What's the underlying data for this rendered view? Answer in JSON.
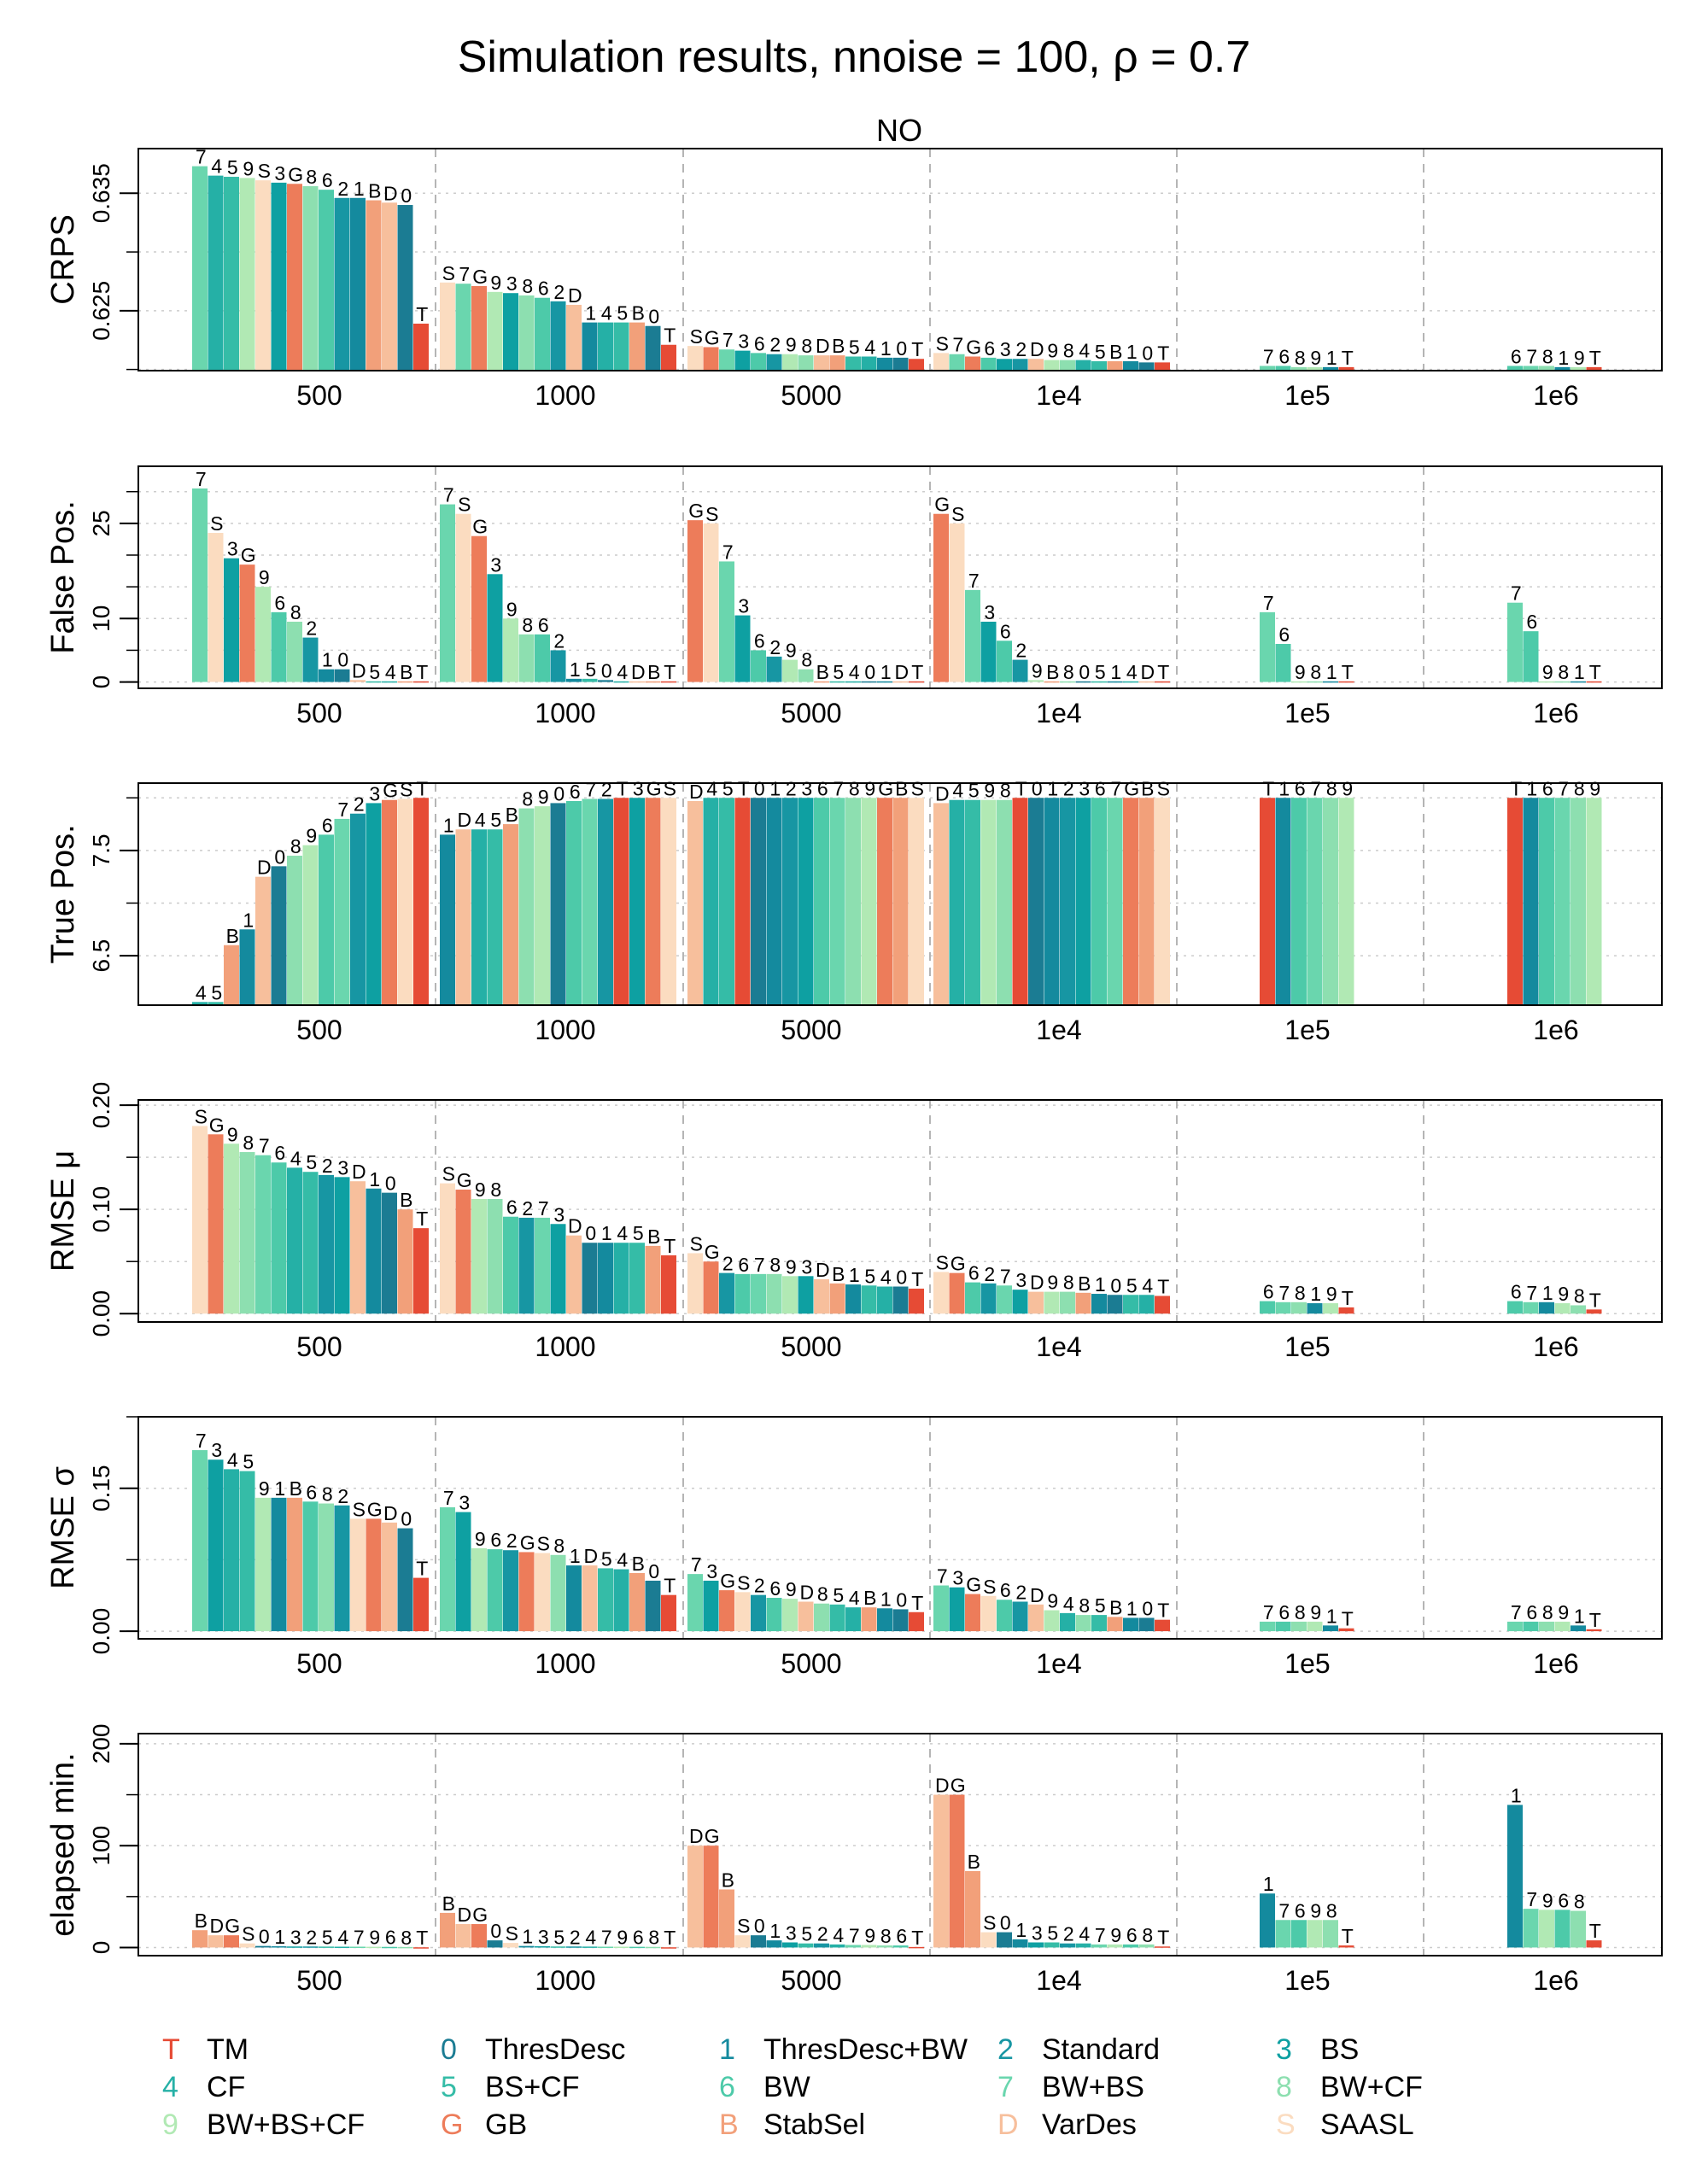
{
  "title": "Simulation results, nnoise = 100, ρ = 0.7",
  "strip_label": "NO",
  "sample_sizes": [
    "500",
    "1000",
    "5000",
    "1e4",
    "1e5",
    "1e6"
  ],
  "methods": [
    {
      "code": "T",
      "name": "TM",
      "color": "#e64b35"
    },
    {
      "code": "0",
      "name": "ThresDesc",
      "color": "#1b7c93"
    },
    {
      "code": "1",
      "name": "ThresDesc+BW",
      "color": "#148a9e"
    },
    {
      "code": "2",
      "name": "Standard",
      "color": "#1796a3"
    },
    {
      "code": "3",
      "name": "BS",
      "color": "#0ea0a2"
    },
    {
      "code": "4",
      "name": "CF",
      "color": "#25b0a6"
    },
    {
      "code": "5",
      "name": "BS+CF",
      "color": "#35bca7"
    },
    {
      "code": "6",
      "name": "BW",
      "color": "#4dcaa9"
    },
    {
      "code": "7",
      "name": "BW+BS",
      "color": "#6ad6ae"
    },
    {
      "code": "8",
      "name": "BW+CF",
      "color": "#8ddfb0"
    },
    {
      "code": "9",
      "name": "BW+BS+CF",
      "color": "#b1e9b4"
    },
    {
      "code": "G",
      "name": "GB",
      "color": "#ed7c5a"
    },
    {
      "code": "B",
      "name": "StabSel",
      "color": "#f2a07a"
    },
    {
      "code": "D",
      "name": "VarDes",
      "color": "#f7bf9c"
    },
    {
      "code": "S",
      "name": "SAASL",
      "color": "#fbdcc0"
    }
  ],
  "chart_data": [
    {
      "type": "bar",
      "ylabel": "CRPS",
      "yticks": [
        0.625,
        0.635
      ],
      "ylim": [
        0.6199,
        0.6388
      ],
      "groups": [
        {
          "label": "500",
          "order": "7459S3G8621BD0T",
          "values": [
            0.6373,
            0.6365,
            0.6364,
            0.6363,
            0.6361,
            0.6359,
            0.6358,
            0.6356,
            0.6353,
            0.6346,
            0.6346,
            0.6344,
            0.6342,
            0.634,
            0.6239
          ]
        },
        {
          "label": "1000",
          "order": "S7G93862D145B0T",
          "values": [
            0.6274,
            0.6273,
            0.6271,
            0.6266,
            0.6265,
            0.6263,
            0.6261,
            0.6258,
            0.6255,
            0.624,
            0.624,
            0.624,
            0.624,
            0.6237,
            0.6221
          ]
        },
        {
          "label": "5000",
          "order": "SG7362 98DB5410T",
          "values": [
            0.622,
            0.6219,
            0.6217,
            0.6216,
            0.6214,
            0.6213,
            0.6213,
            0.6212,
            0.6212,
            0.6212,
            0.6211,
            0.6211,
            0.621,
            0.621,
            0.6209
          ]
        },
        {
          "label": "1e4",
          "order": "S7G632D9845B10T",
          "values": [
            0.6214,
            0.6213,
            0.6211,
            0.621,
            0.6209,
            0.6209,
            0.6209,
            0.6208,
            0.6208,
            0.6208,
            0.6207,
            0.6207,
            0.6207,
            0.6206,
            0.6206
          ]
        },
        {
          "label": "1e5",
          "order": "76891T",
          "values": [
            0.6203,
            0.6203,
            0.6202,
            0.6202,
            0.6202,
            0.6202
          ]
        },
        {
          "label": "1e6",
          "order": "67819T",
          "values": [
            0.6203,
            0.6203,
            0.6203,
            0.6202,
            0.6202,
            0.6202
          ]
        }
      ]
    },
    {
      "type": "bar",
      "ylabel": "False Pos.",
      "yticks": [
        0,
        10,
        25
      ],
      "ylim": [
        -1,
        34
      ],
      "groups": [
        {
          "label": "500",
          "order": "7S3G9682 10D54BT",
          "values": [
            30.5,
            23.5,
            19.5,
            18.5,
            15.0,
            11.0,
            9.5,
            7.0,
            2.0,
            2.0,
            0.3,
            0.1,
            0.1,
            0.1,
            0.1
          ]
        },
        {
          "label": "1000",
          "order": "7SG39862 1504DBT",
          "values": [
            28.0,
            26.5,
            23.0,
            17.0,
            10.0,
            7.5,
            7.5,
            5.0,
            0.5,
            0.5,
            0.3,
            0.1,
            0.1,
            0.1,
            0.1
          ]
        },
        {
          "label": "5000",
          "order": "GS73 6298B5401DT",
          "values": [
            25.5,
            25.0,
            19.0,
            10.5,
            5.0,
            4.0,
            3.5,
            2.0,
            0.1,
            0.1,
            0.1,
            0.1,
            0.1,
            0.1,
            0.1
          ]
        },
        {
          "label": "1e4",
          "order": "GS7362 9B80514DT",
          "values": [
            26.5,
            25.0,
            14.5,
            9.5,
            6.5,
            3.5,
            0.3,
            0.1,
            0.1,
            0.1,
            0.1,
            0.1,
            0.1,
            0.1,
            0.1
          ]
        },
        {
          "label": "1e5",
          "order": "76981T",
          "values": [
            11.0,
            6.0,
            0.1,
            0.1,
            0.1,
            0.1
          ]
        },
        {
          "label": "1e6",
          "order": "76981T",
          "values": [
            12.5,
            8.0,
            0.1,
            0.1,
            0.1,
            0.1
          ]
        }
      ]
    },
    {
      "type": "bar",
      "ylabel": "True Pos.",
      "yticks": [
        6.5,
        7.5
      ],
      "ylim": [
        6.03,
        8.14
      ],
      "groups": [
        {
          "label": "500",
          "order": "45B1D089 672 3GST",
          "values": [
            6.06,
            6.06,
            6.6,
            6.75,
            7.25,
            7.35,
            7.45,
            7.55,
            7.65,
            7.8,
            7.85,
            7.95,
            7.98,
            7.99,
            8.0
          ]
        },
        {
          "label": "1000",
          "order": "1D45B8906 72T3GS",
          "values": [
            7.65,
            7.7,
            7.7,
            7.7,
            7.75,
            7.9,
            7.92,
            7.95,
            7.97,
            7.99,
            7.99,
            8.0,
            8.0,
            8.0,
            8.0
          ]
        },
        {
          "label": "5000",
          "order": "D45T0123 6789GBS",
          "values": [
            7.97,
            8.0,
            8.0,
            8.0,
            8.0,
            8.0,
            8.0,
            8.0,
            8.0,
            8.0,
            8.0,
            8.0,
            8.0,
            8.0,
            8.0
          ]
        },
        {
          "label": "1e4",
          "order": "D4598T0123 67GBS",
          "values": [
            7.95,
            7.98,
            7.98,
            7.98,
            7.98,
            8.0,
            8.0,
            8.0,
            8.0,
            8.0,
            8.0,
            8.0,
            8.0,
            8.0,
            8.0
          ]
        },
        {
          "label": "1e5",
          "order": "T16789",
          "values": [
            8.0,
            8.0,
            8.0,
            8.0,
            8.0,
            8.0
          ]
        },
        {
          "label": "1e6",
          "order": "T16789",
          "values": [
            8.0,
            8.0,
            8.0,
            8.0,
            8.0,
            8.0
          ]
        }
      ]
    },
    {
      "type": "bar",
      "ylabel": "RMSE μ",
      "yticks": [
        0.0,
        0.1,
        0.2
      ],
      "ylim": [
        -0.008,
        0.205
      ],
      "groups": [
        {
          "label": "500",
          "order": "SG9876 4523D10BT",
          "values": [
            0.18,
            0.172,
            0.163,
            0.155,
            0.152,
            0.145,
            0.14,
            0.136,
            0.133,
            0.131,
            0.127,
            0.12,
            0.116,
            0.1,
            0.082
          ]
        },
        {
          "label": "1000",
          "order": "SG98627 3D0145BT",
          "values": [
            0.125,
            0.119,
            0.11,
            0.11,
            0.093,
            0.092,
            0.092,
            0.086,
            0.075,
            0.068,
            0.068,
            0.068,
            0.068,
            0.065,
            0.056
          ]
        },
        {
          "label": "5000",
          "order": "SG267893DB1540T",
          "values": [
            0.058,
            0.05,
            0.039,
            0.038,
            0.038,
            0.038,
            0.036,
            0.036,
            0.033,
            0.029,
            0.028,
            0.027,
            0.026,
            0.026,
            0.024
          ]
        },
        {
          "label": "1e4",
          "order": "SG6273D98B1054T",
          "values": [
            0.04,
            0.039,
            0.03,
            0.029,
            0.027,
            0.023,
            0.021,
            0.021,
            0.021,
            0.02,
            0.019,
            0.018,
            0.018,
            0.018,
            0.017
          ]
        },
        {
          "label": "1e5",
          "order": "67819T",
          "values": [
            0.012,
            0.011,
            0.011,
            0.01,
            0.01,
            0.006
          ]
        },
        {
          "label": "1e6",
          "order": "67198T",
          "values": [
            0.012,
            0.011,
            0.011,
            0.01,
            0.008,
            0.004
          ]
        }
      ]
    },
    {
      "type": "bar",
      "ylabel": "RMSE σ",
      "yticks": [
        0.0,
        0.15
      ],
      "ylim": [
        -0.008,
        0.225
      ],
      "groups": [
        {
          "label": "500",
          "order": "7345 91B682 SGD0T",
          "values": [
            0.19,
            0.18,
            0.17,
            0.168,
            0.14,
            0.14,
            0.14,
            0.136,
            0.134,
            0.132,
            0.118,
            0.118,
            0.114,
            0.108,
            0.056
          ]
        },
        {
          "label": "1000",
          "order": "73962GS8 1D54B0T",
          "values": [
            0.13,
            0.125,
            0.087,
            0.086,
            0.085,
            0.083,
            0.082,
            0.08,
            0.069,
            0.069,
            0.066,
            0.065,
            0.061,
            0.053,
            0.038
          ]
        },
        {
          "label": "5000",
          "order": "73GS269D854B10T",
          "values": [
            0.06,
            0.053,
            0.043,
            0.041,
            0.038,
            0.035,
            0.034,
            0.031,
            0.029,
            0.028,
            0.025,
            0.025,
            0.024,
            0.023,
            0.02
          ]
        },
        {
          "label": "1e4",
          "order": "73GS62D9485B10T",
          "values": [
            0.048,
            0.046,
            0.039,
            0.037,
            0.033,
            0.031,
            0.028,
            0.022,
            0.019,
            0.017,
            0.017,
            0.015,
            0.014,
            0.014,
            0.012
          ]
        },
        {
          "label": "1e5",
          "order": "76891T",
          "values": [
            0.01,
            0.01,
            0.01,
            0.01,
            0.006,
            0.003
          ]
        },
        {
          "label": "1e6",
          "order": "76891T",
          "values": [
            0.01,
            0.01,
            0.01,
            0.01,
            0.006,
            0.002
          ]
        }
      ]
    },
    {
      "type": "bar",
      "ylabel": "elapsed min.",
      "yticks": [
        0,
        100,
        200
      ],
      "ylim": [
        -8,
        210
      ],
      "groups": [
        {
          "label": "500",
          "order": "BDGS01325 47968T",
          "values": [
            17,
            12,
            12,
            4,
            1.5,
            1.2,
            1.0,
            1.0,
            0.9,
            0.8,
            0.8,
            0.7,
            0.6,
            0.5,
            0.2
          ]
        },
        {
          "label": "1000",
          "order": "BDG0S1352 47968T",
          "values": [
            34,
            23,
            23,
            7,
            4.5,
            1.5,
            1.2,
            1.0,
            1.0,
            0.9,
            0.8,
            0.8,
            0.7,
            0.6,
            0.2
          ]
        },
        {
          "label": "5000",
          "order": "DGBS01 35247986T",
          "values": [
            100,
            100,
            57,
            12,
            12,
            7,
            5,
            4,
            4,
            3,
            2.5,
            2.5,
            2,
            2,
            0.5
          ]
        },
        {
          "label": "1e4",
          "order": "DGBS01 35247968T",
          "values": [
            150,
            150,
            75,
            15,
            15,
            8,
            5,
            5,
            4,
            4,
            3,
            3,
            3,
            3,
            1
          ]
        },
        {
          "label": "1e5",
          "order": "17698T",
          "values": [
            53,
            27,
            27,
            27,
            27,
            2
          ]
        },
        {
          "label": "1e6",
          "order": "17968T",
          "values": [
            140,
            38,
            37,
            37,
            36,
            7
          ]
        }
      ]
    }
  ]
}
